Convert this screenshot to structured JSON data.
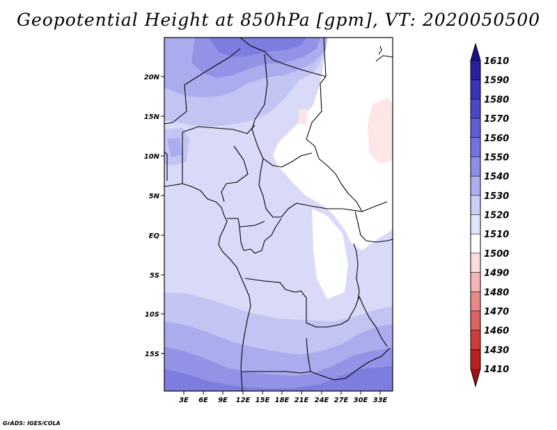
{
  "title": "Geopotential Height at 850hPa [gpm], VT: 2020050500",
  "credit": "GrADS: IGES/COLA",
  "axes": {
    "y_ticks": [
      "20N",
      "15N",
      "10N",
      "5N",
      "EQ",
      "5S",
      "10S",
      "15S"
    ],
    "x_ticks": [
      "3E",
      "6E",
      "9E",
      "12E",
      "15E",
      "18E",
      "21E",
      "24E",
      "27E",
      "30E",
      "33E"
    ]
  },
  "colorbar": {
    "levels": [
      "1610",
      "1590",
      "1580",
      "1570",
      "1560",
      "1550",
      "1540",
      "1530",
      "1520",
      "1510",
      "1500",
      "1490",
      "1480",
      "1470",
      "1460",
      "1430",
      "1410"
    ],
    "colors": [
      "#201088",
      "#2a1fa0",
      "#3a33b8",
      "#4a48c8",
      "#5d5ed6",
      "#7373e0",
      "#8e8ee8",
      "#aeaef0",
      "#cccef6",
      "#e2e4fa",
      "#ffffff",
      "#fcdcdc",
      "#f4b4b4",
      "#e88888",
      "#de6060",
      "#d03c3c",
      "#b82020",
      "#a01010"
    ]
  },
  "map": {
    "colors": {
      "c1520": "#d8daf8",
      "c1530": "#c2c4f4",
      "c1540": "#aaacee",
      "c1550": "#9293e6",
      "c1560": "#7d7de0",
      "c1510": "#ffffff",
      "c1500": "#fde6e6"
    }
  }
}
